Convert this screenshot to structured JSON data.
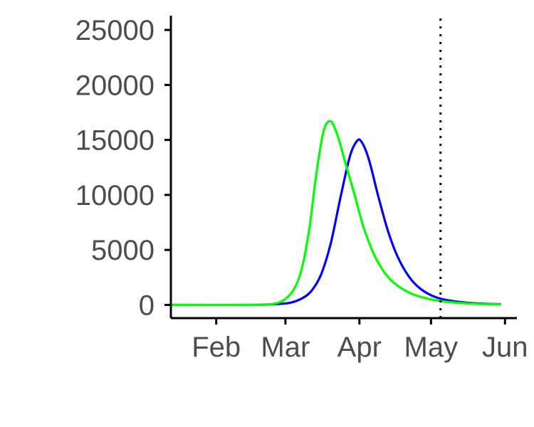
{
  "chart_data": {
    "type": "line",
    "title": "",
    "xlabel": "",
    "ylabel": "",
    "x_ticks": [
      {
        "label": "Feb",
        "date": "2020-02-01"
      },
      {
        "label": "Mar",
        "date": "2020-03-01"
      },
      {
        "label": "Apr",
        "date": "2020-04-01"
      },
      {
        "label": "May",
        "date": "2020-05-01"
      },
      {
        "label": "Jun",
        "date": "2020-06-01"
      }
    ],
    "y_ticks": [
      "0",
      "5000",
      "10000",
      "15000",
      "20000",
      "25000"
    ],
    "xlim": [
      "2020-01-13",
      "2020-06-06"
    ],
    "ylim": [
      -1200,
      26300
    ],
    "grid": false,
    "legend": "none",
    "series": [
      {
        "color": "#0000ff",
        "points": [
          {
            "x": "2020-01-13",
            "y": 0
          },
          {
            "x": "2020-02-15",
            "y": 0
          },
          {
            "x": "2020-02-25",
            "y": 60
          },
          {
            "x": "2020-03-03",
            "y": 200
          },
          {
            "x": "2020-03-08",
            "y": 600
          },
          {
            "x": "2020-03-12",
            "y": 1300
          },
          {
            "x": "2020-03-16",
            "y": 2800
          },
          {
            "x": "2020-03-20",
            "y": 5600
          },
          {
            "x": "2020-03-24",
            "y": 9700
          },
          {
            "x": "2020-03-28",
            "y": 13500
          },
          {
            "x": "2020-03-31",
            "y": 14900
          },
          {
            "x": "2020-04-02",
            "y": 14800
          },
          {
            "x": "2020-04-05",
            "y": 13200
          },
          {
            "x": "2020-04-09",
            "y": 9800
          },
          {
            "x": "2020-04-13",
            "y": 6700
          },
          {
            "x": "2020-04-17",
            "y": 4400
          },
          {
            "x": "2020-04-22",
            "y": 2500
          },
          {
            "x": "2020-04-27",
            "y": 1400
          },
          {
            "x": "2020-05-03",
            "y": 700
          },
          {
            "x": "2020-05-10",
            "y": 350
          },
          {
            "x": "2020-05-18",
            "y": 170
          },
          {
            "x": "2020-05-26",
            "y": 90
          },
          {
            "x": "2020-05-30",
            "y": 70
          }
        ]
      },
      {
        "color": "#00ff00",
        "points": [
          {
            "x": "2020-01-13",
            "y": 0
          },
          {
            "x": "2020-02-15",
            "y": 0
          },
          {
            "x": "2020-02-25",
            "y": 100
          },
          {
            "x": "2020-03-01",
            "y": 550
          },
          {
            "x": "2020-03-05",
            "y": 1600
          },
          {
            "x": "2020-03-08",
            "y": 3400
          },
          {
            "x": "2020-03-11",
            "y": 6900
          },
          {
            "x": "2020-03-14",
            "y": 12000
          },
          {
            "x": "2020-03-17",
            "y": 15800
          },
          {
            "x": "2020-03-20",
            "y": 16700
          },
          {
            "x": "2020-03-23",
            "y": 15300
          },
          {
            "x": "2020-03-26",
            "y": 13000
          },
          {
            "x": "2020-03-30",
            "y": 10000
          },
          {
            "x": "2020-04-03",
            "y": 6900
          },
          {
            "x": "2020-04-08",
            "y": 4200
          },
          {
            "x": "2020-04-14",
            "y": 2300
          },
          {
            "x": "2020-04-22",
            "y": 1100
          },
          {
            "x": "2020-05-01",
            "y": 500
          },
          {
            "x": "2020-05-10",
            "y": 230
          },
          {
            "x": "2020-05-20",
            "y": 100
          },
          {
            "x": "2020-05-30",
            "y": 50
          }
        ]
      }
    ],
    "annotations": [
      {
        "type": "vertical-dotted-line",
        "x": "2020-05-05",
        "color": "#000000"
      }
    ]
  }
}
